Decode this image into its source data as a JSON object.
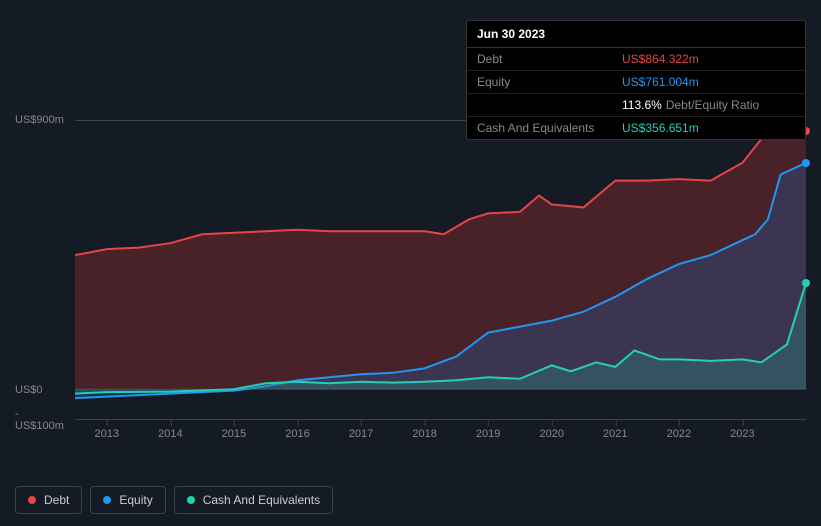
{
  "tooltip": {
    "date": "Jun 30 2023",
    "rows": [
      {
        "label": "Debt",
        "value": "US$864.322m",
        "color": "#e64545"
      },
      {
        "label": "Equity",
        "value": "US$761.004m",
        "color": "#2196f3"
      },
      {
        "label": "",
        "value": "113.6%",
        "suffix": "Debt/Equity Ratio",
        "color": "#ffffff"
      },
      {
        "label": "Cash And Equivalents",
        "value": "US$356.651m",
        "color": "#23d0b4"
      }
    ]
  },
  "chart": {
    "type": "area",
    "background_color": "#151b24",
    "grid_color": "#3a4250",
    "label_color": "#888888",
    "label_fontsize": 11,
    "ylim": [
      -100,
      900
    ],
    "yticks": [
      {
        "v": 900,
        "label": "US$900m"
      },
      {
        "v": 0,
        "label": "US$0"
      },
      {
        "v": -100,
        "label": "-US$100m"
      }
    ],
    "xlim": [
      2012.5,
      2024
    ],
    "xticks": [
      2013,
      2014,
      2015,
      2016,
      2017,
      2018,
      2019,
      2020,
      2021,
      2022,
      2023
    ],
    "series": {
      "debt": {
        "label": "Debt",
        "color": "#e64545",
        "fill": "rgba(168,48,48,0.35)",
        "line_width": 2,
        "data": [
          [
            2012.5,
            450
          ],
          [
            2013,
            470
          ],
          [
            2013.5,
            475
          ],
          [
            2014,
            490
          ],
          [
            2014.5,
            520
          ],
          [
            2015,
            525
          ],
          [
            2015.5,
            530
          ],
          [
            2016,
            535
          ],
          [
            2016.5,
            530
          ],
          [
            2017,
            530
          ],
          [
            2017.5,
            530
          ],
          [
            2018,
            530
          ],
          [
            2018.3,
            520
          ],
          [
            2018.7,
            570
          ],
          [
            2019,
            590
          ],
          [
            2019.5,
            595
          ],
          [
            2019.8,
            650
          ],
          [
            2020,
            620
          ],
          [
            2020.5,
            610
          ],
          [
            2021,
            700
          ],
          [
            2021.5,
            700
          ],
          [
            2022,
            705
          ],
          [
            2022.5,
            700
          ],
          [
            2023,
            760
          ],
          [
            2023.3,
            840
          ],
          [
            2023.5,
            860
          ],
          [
            2024,
            865
          ]
        ]
      },
      "equity": {
        "label": "Equity",
        "color": "#2196f3",
        "fill": "rgba(33,100,180,0.30)",
        "line_width": 2,
        "data": [
          [
            2012.5,
            -30
          ],
          [
            2013,
            -25
          ],
          [
            2013.5,
            -20
          ],
          [
            2014,
            -15
          ],
          [
            2014.5,
            -10
          ],
          [
            2015,
            -5
          ],
          [
            2015.5,
            10
          ],
          [
            2016,
            30
          ],
          [
            2016.5,
            40
          ],
          [
            2017,
            50
          ],
          [
            2017.5,
            55
          ],
          [
            2018,
            70
          ],
          [
            2018.5,
            110
          ],
          [
            2019,
            190
          ],
          [
            2019.5,
            210
          ],
          [
            2020,
            230
          ],
          [
            2020.5,
            260
          ],
          [
            2021,
            310
          ],
          [
            2021.5,
            370
          ],
          [
            2022,
            420
          ],
          [
            2022.5,
            450
          ],
          [
            2023,
            500
          ],
          [
            2023.2,
            520
          ],
          [
            2023.4,
            570
          ],
          [
            2023.6,
            720
          ],
          [
            2024,
            760
          ]
        ]
      },
      "cash": {
        "label": "Cash And Equivalents",
        "color": "#23d0b4",
        "fill": "rgba(35,150,130,0.30)",
        "line_width": 2,
        "data": [
          [
            2012.5,
            -15
          ],
          [
            2013,
            -10
          ],
          [
            2014,
            -8
          ],
          [
            2015,
            0
          ],
          [
            2015.5,
            20
          ],
          [
            2016,
            25
          ],
          [
            2016.5,
            20
          ],
          [
            2017,
            25
          ],
          [
            2017.5,
            22
          ],
          [
            2018,
            25
          ],
          [
            2018.5,
            30
          ],
          [
            2019,
            40
          ],
          [
            2019.5,
            35
          ],
          [
            2020,
            80
          ],
          [
            2020.3,
            60
          ],
          [
            2020.7,
            90
          ],
          [
            2021,
            75
          ],
          [
            2021.3,
            130
          ],
          [
            2021.7,
            100
          ],
          [
            2022,
            100
          ],
          [
            2022.5,
            95
          ],
          [
            2023,
            100
          ],
          [
            2023.3,
            90
          ],
          [
            2023.5,
            120
          ],
          [
            2023.7,
            150
          ],
          [
            2024,
            357
          ]
        ]
      }
    }
  },
  "legend": [
    {
      "key": "debt",
      "label": "Debt",
      "color": "#e64545"
    },
    {
      "key": "equity",
      "label": "Equity",
      "color": "#2196f3"
    },
    {
      "key": "cash",
      "label": "Cash And Equivalents",
      "color": "#23d0b4"
    }
  ]
}
